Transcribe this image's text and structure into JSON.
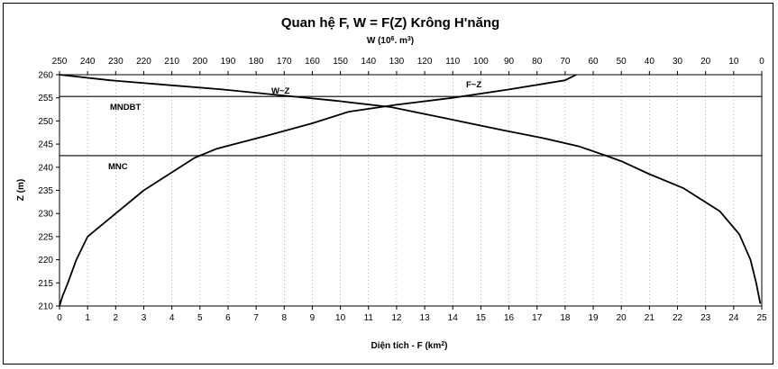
{
  "chart_data": {
    "type": "line",
    "title": "Quan hệ F, W = F(Z) Krông H'năng",
    "top_axis": {
      "label_main": "W (10",
      "label_sup": "6",
      "label_tail": ". m",
      "label_sup2": "3",
      "label_end": ")",
      "range": [
        250,
        0
      ],
      "ticks": [
        "250",
        "240",
        "230",
        "220",
        "210",
        "200",
        "190",
        "180",
        "170",
        "160",
        "150",
        "140",
        "130",
        "120",
        "110",
        "100",
        "90",
        "80",
        "70",
        "60",
        "50",
        "40",
        "30",
        "20",
        "10",
        "0"
      ]
    },
    "bottom_axis": {
      "label_main": "Diện tích - F (km",
      "label_sup": "2",
      "label_end": ")",
      "range": [
        0,
        25
      ],
      "ticks": [
        "0",
        "1",
        "2",
        "3",
        "4",
        "5",
        "6",
        "7",
        "8",
        "9",
        "10",
        "11",
        "12",
        "13",
        "14",
        "15",
        "16",
        "17",
        "18",
        "19",
        "20",
        "21",
        "22",
        "23",
        "24",
        "25"
      ]
    },
    "y_axis": {
      "label": "Z (m)",
      "range": [
        210,
        260
      ],
      "ticks": [
        "260",
        "255",
        "250",
        "245",
        "240",
        "235",
        "230",
        "225",
        "220",
        "215",
        "210"
      ]
    },
    "series": [
      {
        "name": "F~Z",
        "axis": "bottom",
        "points": [
          [
            0,
            210
          ],
          [
            0.1,
            212
          ],
          [
            0.3,
            215
          ],
          [
            0.6,
            220
          ],
          [
            1.0,
            225
          ],
          [
            2.0,
            230
          ],
          [
            3.0,
            235
          ],
          [
            4.8,
            242
          ],
          [
            5.6,
            244
          ],
          [
            7.5,
            247
          ],
          [
            9.0,
            249.5
          ],
          [
            10.3,
            252
          ],
          [
            12.0,
            253.5
          ],
          [
            14.0,
            255
          ],
          [
            16.0,
            256.8
          ],
          [
            18.0,
            258.8
          ],
          [
            18.4,
            260
          ]
        ]
      },
      {
        "name": "W~Z",
        "axis": "top",
        "points": [
          [
            250,
            260
          ],
          [
            232,
            258.8
          ],
          [
            212,
            257.8
          ],
          [
            192,
            256.8
          ],
          [
            172,
            255.6
          ],
          [
            152,
            254.4
          ],
          [
            132,
            253
          ],
          [
            124,
            252
          ],
          [
            112,
            250.5
          ],
          [
            92,
            248
          ],
          [
            78,
            246.3
          ],
          [
            65,
            244.5
          ],
          [
            56,
            242.6
          ],
          [
            50,
            241.3
          ],
          [
            40,
            238.5
          ],
          [
            28,
            235.5
          ],
          [
            15,
            230.5
          ],
          [
            8,
            225.5
          ],
          [
            4,
            220
          ],
          [
            2,
            215
          ],
          [
            0.5,
            210.5
          ]
        ]
      }
    ],
    "reference_lines": [
      {
        "name": "MNDBT",
        "z": 255.3
      },
      {
        "name": "MNC",
        "z": 242.5
      }
    ],
    "grid": "vertical dotted"
  }
}
